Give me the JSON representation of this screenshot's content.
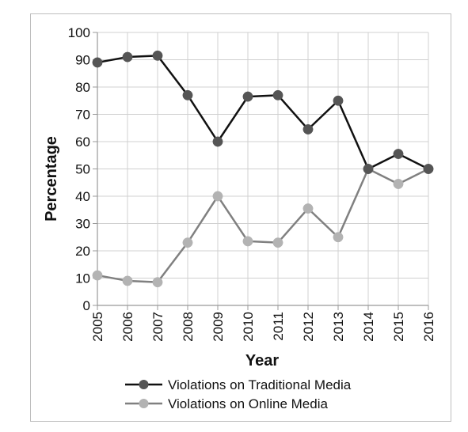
{
  "chart_data": {
    "type": "line",
    "xlabel": "Year",
    "ylabel": "Percentage",
    "x": [
      "2005",
      "2006",
      "2007",
      "2008",
      "2009",
      "2010",
      "2011",
      "2012",
      "2013",
      "2014",
      "2015",
      "2016"
    ],
    "ylim": [
      0,
      100
    ],
    "yticks": [
      0,
      10,
      20,
      30,
      40,
      50,
      60,
      70,
      80,
      90,
      100
    ],
    "grid": true,
    "legend_position": "bottom",
    "series": [
      {
        "name": "Violations on Traditional Media",
        "color": "#555555",
        "line_color": "#111111",
        "values": [
          89,
          91,
          91.5,
          77,
          60,
          76.5,
          77,
          64.5,
          75,
          50,
          55.5,
          50
        ]
      },
      {
        "name": "Violations on Online Media",
        "color": "#b3b3b3",
        "line_color": "#808080",
        "values": [
          11,
          9,
          8.5,
          23,
          40,
          23.5,
          23,
          35.5,
          25,
          50,
          44.5,
          50
        ]
      }
    ]
  }
}
